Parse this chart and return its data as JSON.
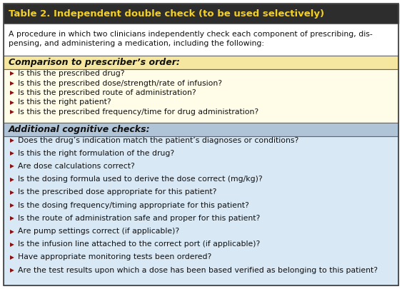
{
  "title": "Table 2. Independent double check (to be used selectively)",
  "title_bg": "#2d2d2d",
  "title_color": "#f5d020",
  "intro_text_line1": "A procedure in which two clinicians independently check each component of prescribing, dis-",
  "intro_text_line2": "pensing, and administering a medication, including the following:",
  "intro_bg": "#ffffff",
  "section1_header": "Comparison to prescriber’s order:",
  "section1_header_bg": "#f5e6a0",
  "section1_items_bg": "#fffde8",
  "section1_items": [
    "Is this the prescribed drug?",
    "Is this the prescribed dose/strength/rate of infusion?",
    "Is this the prescribed route of administration?",
    "Is this the right patient?",
    "Is this the prescribed frequency/time for drug administration?"
  ],
  "section2_header": "Additional cognitive checks:",
  "section2_header_bg": "#b0c4d8",
  "section2_items_bg": "#d8e8f5",
  "section2_items": [
    "Does the drug’s indication match the patient’s diagnoses or conditions?",
    "Is this the right formulation of the drug?",
    "Are dose calculations correct?",
    "Is the dosing formula used to derive the dose correct (mg/kg)?",
    "Is the prescribed dose appropriate for this patient?",
    "Is the dosing frequency/timing appropriate for this patient?",
    "Is the route of administration safe and proper for this patient?",
    "Are pump settings correct (if applicable)?",
    "Is the infusion line attached to the correct port (if applicable)?",
    "Have appropriate monitoring tests been ordered?",
    "Are the test results upon which a dose has been based verified as belonging to this patient?"
  ],
  "bullet_color": "#8b1010",
  "text_color": "#111111",
  "title_fontsize": 9.5,
  "body_fontsize": 7.8,
  "header_fontsize": 9.0
}
